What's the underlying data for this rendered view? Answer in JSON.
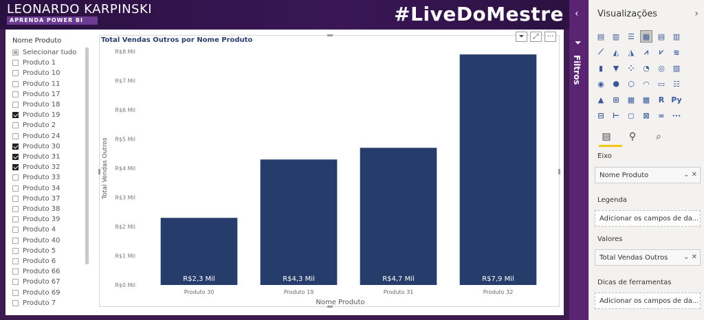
{
  "header": {
    "brand": "LEONARDO KARPINSKI",
    "brand_sub": "APRENDA POWER BI",
    "hashtag": "#LiveDoMestre"
  },
  "slicer": {
    "title": "Nome Produto",
    "items": [
      {
        "label": "Selecionar tudo",
        "state": "partial"
      },
      {
        "label": "Produto 1",
        "state": "unchecked"
      },
      {
        "label": "Produto 10",
        "state": "unchecked"
      },
      {
        "label": "Produto 11",
        "state": "unchecked"
      },
      {
        "label": "Produto 17",
        "state": "unchecked"
      },
      {
        "label": "Produto 18",
        "state": "unchecked"
      },
      {
        "label": "Produto 19",
        "state": "checked"
      },
      {
        "label": "Produto 2",
        "state": "unchecked"
      },
      {
        "label": "Produto 24",
        "state": "unchecked"
      },
      {
        "label": "Produto 30",
        "state": "checked"
      },
      {
        "label": "Produto 31",
        "state": "checked"
      },
      {
        "label": "Produto 32",
        "state": "checked"
      },
      {
        "label": "Produto 33",
        "state": "unchecked"
      },
      {
        "label": "Produto 34",
        "state": "unchecked"
      },
      {
        "label": "Produto 37",
        "state": "unchecked"
      },
      {
        "label": "Produto 38",
        "state": "unchecked"
      },
      {
        "label": "Produto 39",
        "state": "unchecked"
      },
      {
        "label": "Produto 4",
        "state": "unchecked"
      },
      {
        "label": "Produto 40",
        "state": "unchecked"
      },
      {
        "label": "Produto 5",
        "state": "unchecked"
      },
      {
        "label": "Produto 6",
        "state": "unchecked"
      },
      {
        "label": "Produto 66",
        "state": "unchecked"
      },
      {
        "label": "Produto 67",
        "state": "unchecked"
      },
      {
        "label": "Produto 69",
        "state": "unchecked"
      },
      {
        "label": "Produto 7",
        "state": "unchecked"
      }
    ]
  },
  "visual_toolbar": {
    "filter_icon": "filter-icon",
    "focus_icon": "focus-mode-icon",
    "more_label": "···"
  },
  "chart_data": {
    "type": "bar",
    "title": "Total Vendas Outros por Nome Produto",
    "xlabel": "Nome Produto",
    "ylabel": "Total Vendas Outros",
    "categories": [
      "Produto 30",
      "Produto 19",
      "Produto 31",
      "Produto 32"
    ],
    "values": [
      2.3,
      4.3,
      4.7,
      7.9
    ],
    "data_labels": [
      "R$2,3 Mil",
      "R$4,3 Mil",
      "R$4,7 Mil",
      "R$7,9 Mil"
    ],
    "yticks": [
      0,
      1,
      2,
      3,
      4,
      5,
      6,
      7,
      8
    ],
    "ytick_labels": [
      "R$0 Mil",
      "R$1 Mil",
      "R$2 Mil",
      "R$3 Mil",
      "R$4 Mil",
      "R$5 Mil",
      "R$6 Mil",
      "R$7 Mil",
      "R$8 Mil"
    ],
    "ylim": [
      0,
      8
    ],
    "bar_color": "#263d6b",
    "grid": false
  },
  "filters_rail": {
    "label": "Filtros",
    "chevron": "‹",
    "icon": "filter-icon"
  },
  "pane": {
    "title": "Visualizações",
    "chevron": "›",
    "viz_icons": [
      {
        "name": "stacked-bar-icon",
        "glyph": "▤"
      },
      {
        "name": "stacked-column-icon",
        "glyph": "▥"
      },
      {
        "name": "clustered-bar-icon",
        "glyph": "☰"
      },
      {
        "name": "clustered-column-icon",
        "glyph": "▦",
        "selected": true
      },
      {
        "name": "100-stacked-bar-icon",
        "glyph": "▤"
      },
      {
        "name": "100-stacked-column-icon",
        "glyph": "▥"
      },
      {
        "name": "blank-icon",
        "glyph": ""
      },
      {
        "name": "line-chart-icon",
        "glyph": "⟋"
      },
      {
        "name": "area-chart-icon",
        "glyph": "◭"
      },
      {
        "name": "stacked-area-icon",
        "glyph": "◮"
      },
      {
        "name": "line-column-icon",
        "glyph": "⩘"
      },
      {
        "name": "line-stacked-column-icon",
        "glyph": "⩗"
      },
      {
        "name": "ribbon-chart-icon",
        "glyph": "≋"
      },
      {
        "name": "blank-icon-2",
        "glyph": ""
      },
      {
        "name": "waterfall-icon",
        "glyph": "▮"
      },
      {
        "name": "funnel-icon",
        "glyph": "▼"
      },
      {
        "name": "scatter-icon",
        "glyph": "⁘"
      },
      {
        "name": "pie-icon",
        "glyph": "◔"
      },
      {
        "name": "donut-icon",
        "glyph": "◎"
      },
      {
        "name": "treemap-icon",
        "glyph": "▧"
      },
      {
        "name": "blank-icon-3",
        "glyph": ""
      },
      {
        "name": "map-icon",
        "glyph": "◉"
      },
      {
        "name": "filled-map-icon",
        "glyph": "⬢"
      },
      {
        "name": "shape-map-icon",
        "glyph": "⬡"
      },
      {
        "name": "gauge-icon",
        "glyph": "◠"
      },
      {
        "name": "card-icon",
        "glyph": "▭"
      },
      {
        "name": "multi-row-card-icon",
        "glyph": "☷"
      },
      {
        "name": "blank-icon-4",
        "glyph": ""
      },
      {
        "name": "kpi-icon",
        "glyph": "▲"
      },
      {
        "name": "slicer-icon",
        "glyph": "⊞"
      },
      {
        "name": "table-icon",
        "glyph": "▦"
      },
      {
        "name": "matrix-icon",
        "glyph": "▩"
      },
      {
        "name": "r-visual-icon",
        "glyph": "R"
      },
      {
        "name": "python-visual-icon",
        "glyph": "Py"
      },
      {
        "name": "blank-icon-5",
        "glyph": ""
      },
      {
        "name": "key-influencers-icon",
        "glyph": "⊟"
      },
      {
        "name": "decomposition-tree-icon",
        "glyph": "⊢"
      },
      {
        "name": "qa-icon",
        "glyph": "◻"
      },
      {
        "name": "smart-narrative-icon",
        "glyph": "⊠"
      },
      {
        "name": "custom-visual-icon",
        "glyph": "∞"
      },
      {
        "name": "more-visuals-icon",
        "glyph": "···"
      },
      {
        "name": "blank-icon-6",
        "glyph": ""
      }
    ],
    "tabs": [
      {
        "name": "fields-tab",
        "glyph": "▤"
      },
      {
        "name": "format-tab",
        "glyph": "⚲"
      },
      {
        "name": "analytics-tab",
        "glyph": "⌕"
      }
    ],
    "wells": {
      "axis_label": "Eixo",
      "axis_value": "Nome Produto",
      "legend_label": "Legenda",
      "legend_placeholder": "Adicionar os campos de da...",
      "values_label": "Valores",
      "values_value": "Total Vendas Outros",
      "tooltips_label": "Dicas de ferramentas",
      "tooltips_placeholder": "Adicionar os campos de da...",
      "actions": "⌄ ✕"
    }
  }
}
